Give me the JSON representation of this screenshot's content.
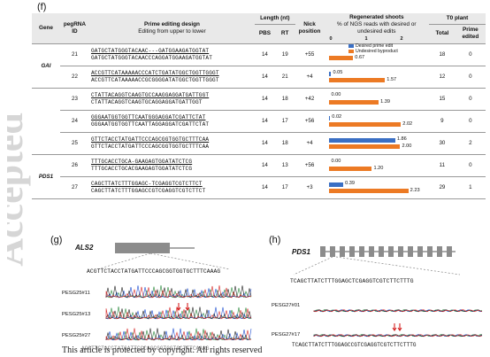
{
  "watermark": "Accepted",
  "panel_f": {
    "label": "(f)",
    "headers": {
      "gene": "Gene",
      "pegrna": "pegRNA ID",
      "design": "Prime editing design",
      "design_sub": "Editing from upper to lower",
      "length": "Length (nt)",
      "pbs": "PBS",
      "rt": "RT",
      "nick": "Nick position",
      "regen": "Regenerated shoots",
      "regen_sub": "% of NGS reads with desired or undesired edits",
      "t0": "T0 plant",
      "total": "Total",
      "prime": "Prime edited"
    },
    "axis_ticks": [
      "0",
      "1",
      "2"
    ],
    "legend": {
      "desired": "Desired prime edit",
      "undesired": "Undesired byproduct"
    },
    "colors": {
      "desired": "#3a6fc4",
      "undesired": "#ec7a24",
      "highlight": "#d41f1f"
    },
    "rows": [
      {
        "gene": "GAI",
        "id": "21",
        "seq1": "GATGCTATGGGTACAAC---GATGGAAGATGGTAT",
        "seq2": "GATGCTATGGGTACAACCCAGGATGGAAGATGGTAT",
        "pbs": "14",
        "rt": "19",
        "nick": "+55",
        "desired": "",
        "undesired": "0.67",
        "desired_v": 0,
        "undesired_v": 0.67,
        "total": "18",
        "prime": "0"
      },
      {
        "gene": "",
        "id": "22",
        "seq1": "ACCGTTCATAAAAACCCATCTGATATGGCTGGTTGGGT",
        "seq2": "ACCGTTCATAAAAACCGCGGGGATATGGCTGGTTGGGT",
        "pbs": "14",
        "rt": "21",
        "nick": "+4",
        "desired": "0.05",
        "undesired": "1.57",
        "desired_v": 0.05,
        "undesired_v": 1.57,
        "total": "12",
        "prime": "0"
      },
      {
        "gene": "",
        "id": "23",
        "seq1": "CTATTACAGGTCAAGTGCCAAGGAGGATGATTGGT",
        "seq2": "CTATTACAGGTCAAGTGCAGGAGGATGATTGGT",
        "pbs": "14",
        "rt": "18",
        "nick": "+42",
        "desired": "0.00",
        "undesired": "1.39",
        "desired_v": 0,
        "undesired_v": 1.39,
        "total": "15",
        "prime": "0"
      },
      {
        "gene": "ALS2",
        "id": "24",
        "seq1": "GGGAATGGTGGTTCAATGGGAGGATCGATTCTAT",
        "seq2": "GGGAATGGTGGTTCAATTAGGAGGATCGATTCTAT",
        "pbs": "14",
        "rt": "17",
        "nick": "+56",
        "desired": "0.02",
        "undesired": "2.02",
        "desired_v": 0.02,
        "undesired_v": 2.02,
        "total": "9",
        "prime": "0"
      },
      {
        "gene": "",
        "id": "25",
        "seq1": "GTTCTACCTATGATTCCCAGCGGTGGTGCTTTCAA",
        "seq2": "GTTCTACCTATGATTCCCAGCGGTGGTGCTTTCAA",
        "pbs": "14",
        "rt": "18",
        "nick": "+4",
        "desired": "1.86",
        "undesired": "2.00",
        "desired_v": 1.86,
        "undesired_v": 2.0,
        "total": "30",
        "prime": "2"
      },
      {
        "gene": "PDS1",
        "id": "26",
        "seq1": "TTTGCACCTGCA-GAAGAGTGGATATCTCG",
        "seq2": "TTTGCACCTGCACGAAGAGTGGATATCTCG",
        "pbs": "14",
        "rt": "13",
        "nick": "+56",
        "desired": "0.00",
        "undesired": "1.20",
        "desired_v": 0,
        "undesired_v": 1.2,
        "total": "11",
        "prime": "0"
      },
      {
        "gene": "",
        "id": "27",
        "seq1": "CAGCTTATCTTTGGAGC-TCGAGGTCGTCTTCT",
        "seq2": "CAGCTTATCTTTGGAGCCGTCGAGGTCGTCTTCT",
        "pbs": "14",
        "rt": "17",
        "nick": "+3",
        "desired": "0.39",
        "undesired": "2.23",
        "desired_v": 0.39,
        "undesired_v": 2.23,
        "total": "29",
        "prime": "1"
      }
    ]
  },
  "panel_g": {
    "label": "(g)",
    "gene": "ALS2",
    "sequence": "ACGTTCTACCTATGATTCCCAGCGGTGGTGCTTTCAAAG",
    "samples": [
      "PESG25#11",
      "PESG25#13",
      "PESG25#27"
    ],
    "bottom_seq": "ACGTTCTACCTATGATTCCCAGCGGTGGTGCTTTCAAAG"
  },
  "panel_h": {
    "label": "(h)",
    "gene": "PDS1",
    "sequence": "TCAGCTTATCTTTGGAGCTCGAGGTCGTCTTCTTTG",
    "samples": [
      "PESG27#01",
      "PESG27#17"
    ],
    "bottom_seq": "TCAGCTTATCTTTGGAGCCGTCGAGGTCGTCTTCTTTG"
  },
  "footer": "This article is protected by copyright. All rights reserved"
}
